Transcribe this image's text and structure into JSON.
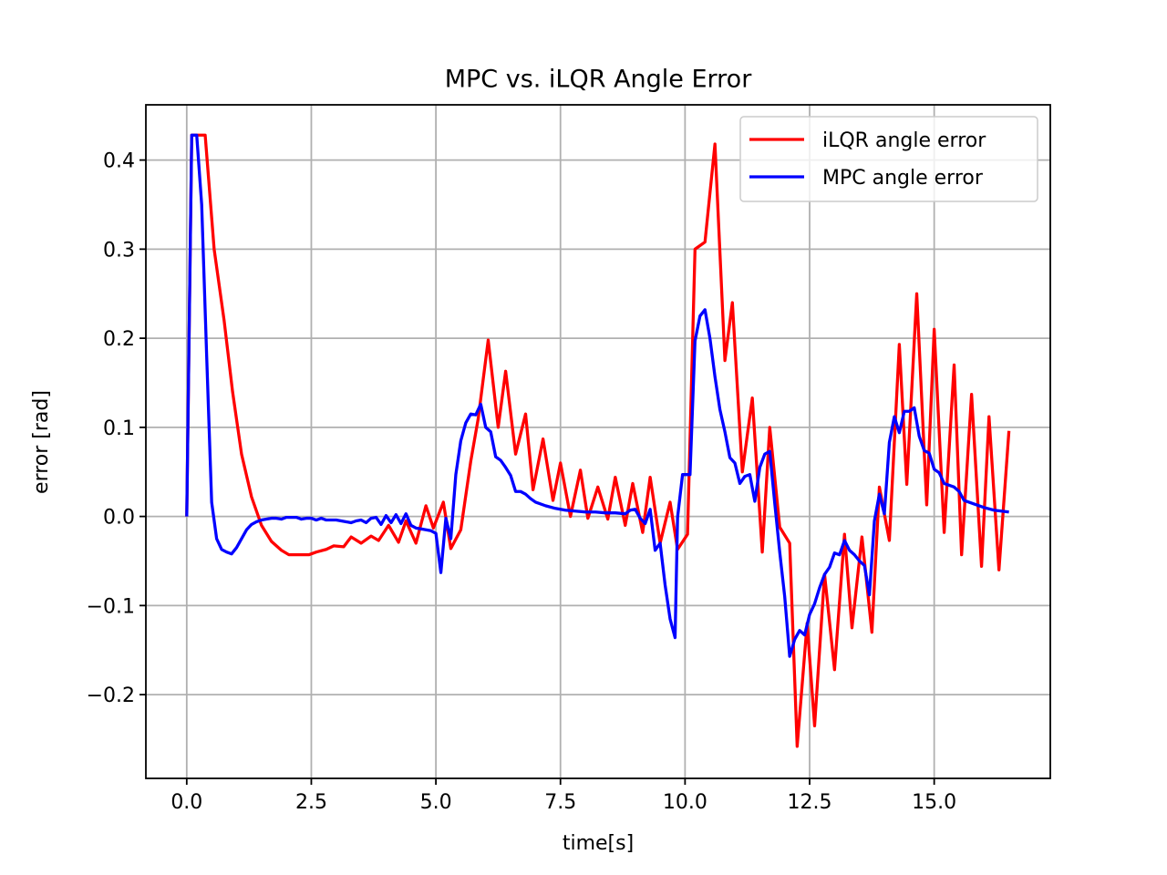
{
  "chart_data": {
    "type": "line",
    "title": "MPC vs. iLQR Angle Error",
    "xlabel": "time[s]",
    "ylabel": "error [rad]",
    "xlim": [
      -0.82,
      17.33
    ],
    "ylim": [
      -0.294,
      0.462
    ],
    "xticks": [
      {
        "value": 0,
        "label": "0.0"
      },
      2.5,
      {
        "value": 5,
        "label": "5.0"
      },
      7.5,
      {
        "value": 10,
        "label": "10.0"
      },
      12.5,
      {
        "value": 15,
        "label": "15.0"
      }
    ],
    "yticks": [
      {
        "value": -0.2,
        "label": "−0.2"
      },
      {
        "value": -0.1,
        "label": "−0.1"
      },
      {
        "value": 0,
        "label": "0.0"
      },
      0.1,
      0.2,
      0.3,
      0.4
    ],
    "grid": true,
    "legend": "upper right",
    "series": [
      {
        "name": "iLQR angle error",
        "color": "#ff0000",
        "x": [
          0,
          0.1,
          0.37,
          0.55,
          0.75,
          0.92,
          1.1,
          1.3,
          1.5,
          1.7,
          1.9,
          2.05,
          2.25,
          2.45,
          2.6,
          2.8,
          2.95,
          3.15,
          3.3,
          3.5,
          3.7,
          3.85,
          4.05,
          4.25,
          4.4,
          4.6,
          4.8,
          4.95,
          5.15,
          5.3,
          5.5,
          5.7,
          5.85,
          6.05,
          6.25,
          6.4,
          6.6,
          6.8,
          6.95,
          7.15,
          7.35,
          7.5,
          7.7,
          7.9,
          8.05,
          8.25,
          8.45,
          8.6,
          8.8,
          8.95,
          9.15,
          9.3,
          9.5,
          9.7,
          9.85,
          10.05,
          10.2,
          10.4,
          10.6,
          10.8,
          10.95,
          11.15,
          11.35,
          11.55,
          11.7,
          11.9,
          12.1,
          12.25,
          12.45,
          12.6,
          12.8,
          13.0,
          13.2,
          13.35,
          13.55,
          13.75,
          13.9,
          14.1,
          14.3,
          14.45,
          14.65,
          14.85,
          15.0,
          15.2,
          15.4,
          15.55,
          15.75,
          15.95,
          16.1,
          16.3,
          16.5
        ],
        "values": [
          0,
          0.428,
          0.428,
          0.3,
          0.22,
          0.14,
          0.07,
          0.022,
          -0.01,
          -0.028,
          -0.038,
          -0.043,
          -0.043,
          -0.043,
          -0.04,
          -0.037,
          -0.033,
          -0.034,
          -0.023,
          -0.03,
          -0.022,
          -0.027,
          -0.01,
          -0.029,
          -0.005,
          -0.03,
          0.012,
          -0.013,
          0.016,
          -0.036,
          -0.015,
          0.062,
          0.11,
          0.198,
          0.1,
          0.163,
          0.07,
          0.115,
          0.03,
          0.087,
          0.018,
          0.06,
          0,
          0.052,
          -0.002,
          0.033,
          -0.003,
          0.044,
          -0.01,
          0.037,
          -0.018,
          0.044,
          -0.03,
          0.016,
          -0.037,
          -0.02,
          0.3,
          0.308,
          0.418,
          0.175,
          0.24,
          0.05,
          0.133,
          -0.04,
          0.1,
          -0.012,
          -0.03,
          -0.258,
          -0.12,
          -0.235,
          -0.065,
          -0.172,
          -0.02,
          -0.125,
          -0.023,
          -0.13,
          0.033,
          -0.027,
          0.193,
          0.036,
          0.25,
          0.013,
          0.21,
          -0.018,
          0.17,
          -0.043,
          0.137,
          -0.056,
          0.112,
          -0.06,
          0.096
        ]
      },
      {
        "name": "MPC angle error",
        "color": "#0000ff",
        "x": [
          0,
          0.1,
          0.2,
          0.3,
          0.4,
          0.5,
          0.6,
          0.7,
          0.8,
          0.9,
          1.0,
          1.1,
          1.2,
          1.3,
          1.4,
          1.5,
          1.6,
          1.7,
          1.8,
          1.9,
          2.0,
          2.1,
          2.2,
          2.3,
          2.4,
          2.5,
          2.6,
          2.7,
          2.8,
          2.9,
          3.0,
          3.1,
          3.2,
          3.3,
          3.4,
          3.5,
          3.6,
          3.7,
          3.8,
          3.9,
          4.0,
          4.1,
          4.2,
          4.3,
          4.4,
          4.5,
          4.6,
          4.7,
          4.8,
          4.9,
          5.0,
          5.1,
          5.2,
          5.3,
          5.4,
          5.5,
          5.6,
          5.7,
          5.8,
          5.9,
          6.0,
          6.1,
          6.2,
          6.3,
          6.4,
          6.5,
          6.6,
          6.7,
          6.8,
          6.9,
          7.0,
          7.2,
          7.4,
          7.6,
          7.8,
          8.0,
          8.2,
          8.4,
          8.6,
          8.8,
          8.9,
          9.0,
          9.1,
          9.2,
          9.3,
          9.4,
          9.5,
          9.6,
          9.7,
          9.8,
          9.85,
          9.95,
          10.1,
          10.2,
          10.3,
          10.4,
          10.5,
          10.6,
          10.7,
          10.8,
          10.9,
          11.0,
          11.1,
          11.2,
          11.3,
          11.4,
          11.5,
          11.6,
          11.7,
          11.8,
          11.9,
          12.0,
          12.1,
          12.2,
          12.3,
          12.4,
          12.5,
          12.6,
          12.7,
          12.8,
          12.9,
          13.0,
          13.1,
          13.2,
          13.3,
          13.4,
          13.5,
          13.6,
          13.7,
          13.8,
          13.9,
          14.0,
          14.1,
          14.2,
          14.3,
          14.4,
          14.5,
          14.6,
          14.7,
          14.8,
          14.9,
          15.0,
          15.1,
          15.2,
          15.4,
          15.5,
          15.6,
          15.8,
          16.0,
          16.2,
          16.5
        ],
        "values": [
          0,
          0.428,
          0.428,
          0.35,
          0.18,
          0.016,
          -0.025,
          -0.037,
          -0.04,
          -0.042,
          -0.035,
          -0.025,
          -0.015,
          -0.009,
          -0.006,
          -0.004,
          -0.003,
          -0.002,
          -0.002,
          -0.003,
          -0.001,
          -0.001,
          -0.001,
          -0.003,
          -0.002,
          -0.002,
          -0.004,
          -0.002,
          -0.004,
          -0.004,
          -0.004,
          -0.005,
          -0.006,
          -0.007,
          -0.005,
          -0.004,
          -0.007,
          -0.002,
          -0.001,
          -0.009,
          0.001,
          -0.007,
          0.002,
          -0.008,
          0.003,
          -0.01,
          -0.013,
          -0.014,
          -0.015,
          -0.016,
          -0.019,
          -0.063,
          -0.002,
          -0.025,
          0.047,
          0.085,
          0.105,
          0.115,
          0.114,
          0.126,
          0.1,
          0.095,
          0.067,
          0.063,
          0.055,
          0.046,
          0.028,
          0.028,
          0.025,
          0.02,
          0.016,
          0.012,
          0.009,
          0.007,
          0.006,
          0.005,
          0.005,
          0.004,
          0.004,
          0.003,
          0.007,
          0.008,
          -0.002,
          -0.008,
          0.008,
          -0.038,
          -0.03,
          -0.077,
          -0.115,
          -0.136,
          -0.001,
          0.047,
          0.047,
          0.197,
          0.225,
          0.232,
          0.2,
          0.157,
          0.12,
          0.095,
          0.066,
          0.06,
          0.037,
          0.045,
          0.047,
          0.017,
          0.055,
          0.07,
          0.073,
          0.015,
          -0.04,
          -0.09,
          -0.157,
          -0.138,
          -0.128,
          -0.133,
          -0.11,
          -0.098,
          -0.08,
          -0.065,
          -0.057,
          -0.041,
          -0.043,
          -0.027,
          -0.038,
          -0.043,
          -0.05,
          -0.055,
          -0.088,
          -0.005,
          0.025,
          0.003,
          0.083,
          0.112,
          0.094,
          0.118,
          0.118,
          0.122,
          0.09,
          0.074,
          0.071,
          0.053,
          0.049,
          0.037,
          0.033,
          0.028,
          0.018,
          0.014,
          0.01,
          0.007,
          0.005
        ]
      }
    ]
  }
}
